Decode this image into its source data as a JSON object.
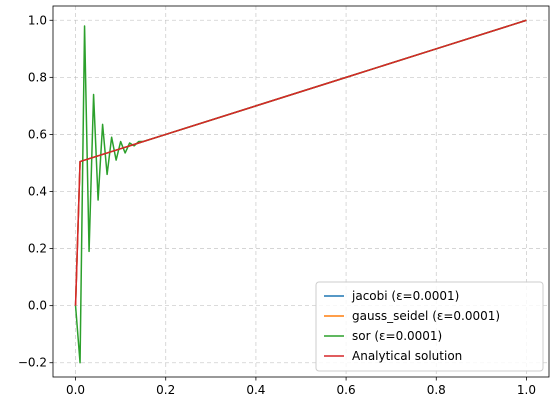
{
  "chart_data": {
    "type": "line",
    "title": "",
    "xlabel": "",
    "ylabel": "",
    "xlim": [
      -0.05,
      1.05
    ],
    "ylim": [
      -0.25,
      1.05
    ],
    "grid": true,
    "legend_position": "bottom-right",
    "x_ticks": [
      "0.0",
      "0.2",
      "0.4",
      "0.6",
      "0.8",
      "1.0"
    ],
    "x_tick_values": [
      0.0,
      0.2,
      0.4,
      0.6,
      0.8,
      1.0
    ],
    "y_ticks": [
      "−0.2",
      "0.0",
      "0.2",
      "0.4",
      "0.6",
      "0.8",
      "1.0"
    ],
    "y_tick_values": [
      -0.2,
      0.0,
      0.2,
      0.4,
      0.6,
      0.8,
      1.0
    ],
    "series": [
      {
        "name": "jacobi (ε=0.0001)",
        "color": "#1f77b4",
        "x": [
          0.0,
          0.01,
          0.1,
          0.2,
          0.4,
          0.6,
          0.8,
          1.0
        ],
        "y": [
          0.0,
          0.505,
          0.55,
          0.6,
          0.7,
          0.8,
          0.9,
          1.0
        ]
      },
      {
        "name": "gauss_seidel (ε=0.0001)",
        "color": "#ff7f0e",
        "x": [
          0.0,
          0.01,
          0.1,
          0.2,
          0.4,
          0.6,
          0.8,
          1.0
        ],
        "y": [
          0.0,
          0.505,
          0.55,
          0.6,
          0.7,
          0.8,
          0.9,
          1.0
        ]
      },
      {
        "name": "sor (ε=0.0001)",
        "color": "#2ca02c",
        "x": [
          0.0,
          0.01,
          0.02,
          0.03,
          0.04,
          0.05,
          0.06,
          0.07,
          0.08,
          0.09,
          0.1,
          0.11,
          0.12,
          0.13,
          0.14,
          0.15,
          0.2,
          0.4,
          0.6,
          0.8,
          1.0
        ],
        "y": [
          0.0,
          -0.2,
          0.98,
          0.19,
          0.74,
          0.37,
          0.635,
          0.46,
          0.59,
          0.51,
          0.575,
          0.535,
          0.57,
          0.56,
          0.575,
          0.575,
          0.6,
          0.7,
          0.8,
          0.9,
          1.0
        ]
      },
      {
        "name": "Analytical solution",
        "color": "#d62728",
        "x": [
          0.0,
          0.01,
          0.1,
          0.2,
          0.4,
          0.6,
          0.8,
          1.0
        ],
        "y": [
          0.0,
          0.505,
          0.55,
          0.6,
          0.7,
          0.8,
          0.9,
          1.0
        ]
      }
    ]
  }
}
